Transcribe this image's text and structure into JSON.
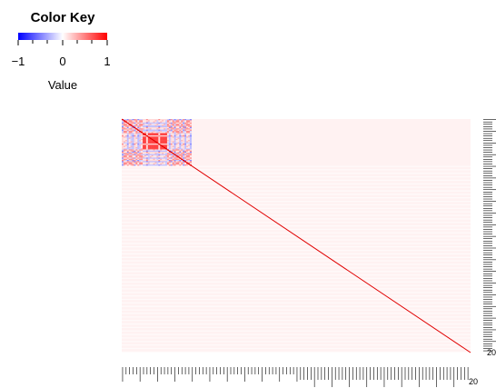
{
  "chart_data": {
    "type": "heatmap",
    "n": 200,
    "blocks": [
      {
        "from": 1,
        "to": 40,
        "pattern": "correlated-block"
      }
    ],
    "diagonal_value": 1,
    "off_block_level": 0.05,
    "scale": {
      "min": -1,
      "max": 1,
      "low_color": "#0000ff",
      "mid_color": "#ffffff",
      "high_color": "#ff0000"
    },
    "color_key": {
      "title": "Color Key",
      "ticks": [
        "−1",
        "0",
        "1"
      ],
      "label": "Value"
    },
    "row_labels_visible": [
      "20"
    ],
    "col_labels_visible": [
      "20"
    ]
  }
}
